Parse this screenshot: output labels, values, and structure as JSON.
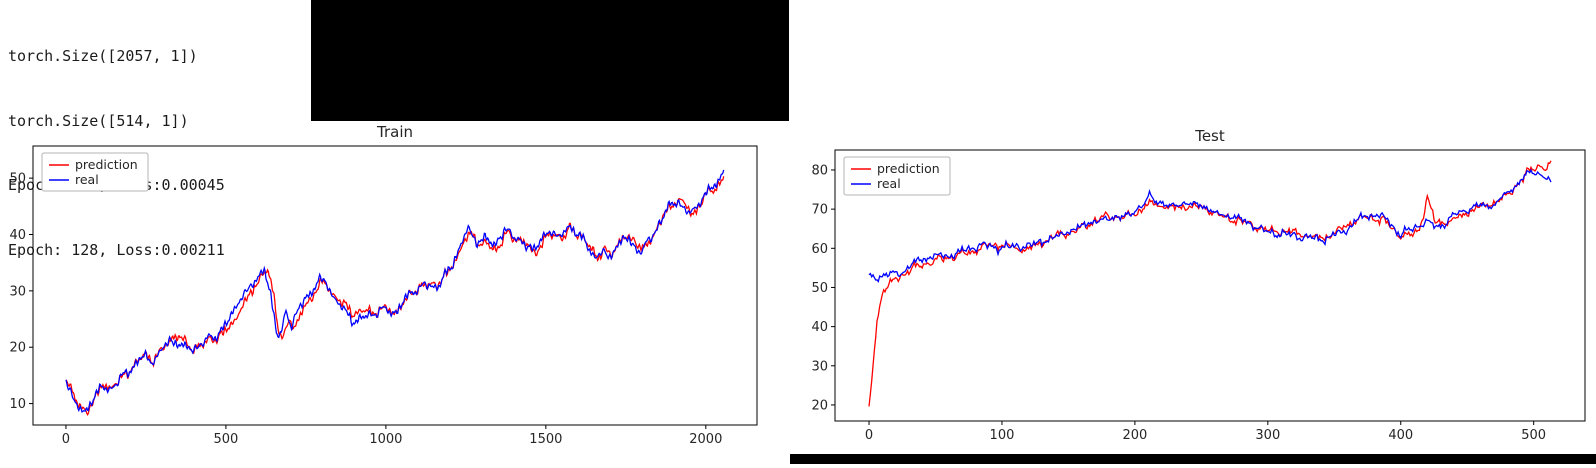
{
  "console": {
    "lines": [
      "torch.Size([2057, 1])",
      "torch.Size([514, 1])",
      "Epoch: 128, Loss:0.00045",
      "Epoch: 128, Loss:0.00211"
    ]
  },
  "chart_data": [
    {
      "type": "line",
      "title": "Train",
      "xlabel": "",
      "ylabel": "",
      "xticks": [
        0,
        500,
        1000,
        1500,
        2000
      ],
      "yticks": [
        10,
        20,
        30,
        40,
        50
      ],
      "xlim": [
        -103,
        2160
      ],
      "ylim": [
        6.2,
        55.7
      ],
      "n_points": 2057,
      "n_render": 820,
      "grid": false,
      "legend_position": "upper-left",
      "shared": {
        "seed": 41,
        "amp": 0.7
      },
      "keypoints": [
        [
          0,
          14.2
        ],
        [
          25,
          11.8
        ],
        [
          55,
          9.0
        ],
        [
          80,
          11.5
        ],
        [
          105,
          12.8
        ],
        [
          130,
          12.3
        ],
        [
          160,
          14.4
        ],
        [
          200,
          16.6
        ],
        [
          235,
          18.4
        ],
        [
          265,
          17.6
        ],
        [
          300,
          20.5
        ],
        [
          325,
          22.8
        ],
        [
          350,
          21.6
        ],
        [
          380,
          19.4
        ],
        [
          415,
          18.9
        ],
        [
          445,
          21.0
        ],
        [
          480,
          21.6
        ],
        [
          515,
          24.4
        ],
        [
          550,
          27.8
        ],
        [
          580,
          31.5
        ],
        [
          605,
          33.6
        ],
        [
          622,
          34.6
        ],
        [
          640,
          30.0
        ],
        [
          658,
          22.8
        ],
        [
          672,
          21.8
        ],
        [
          688,
          25.8
        ],
        [
          705,
          23.6
        ],
        [
          725,
          26.6
        ],
        [
          745,
          28.4
        ],
        [
          770,
          30.2
        ],
        [
          790,
          31.8
        ],
        [
          815,
          30.6
        ],
        [
          845,
          28.6
        ],
        [
          875,
          27.2
        ],
        [
          910,
          25.9
        ],
        [
          950,
          25.4
        ],
        [
          985,
          25.9
        ],
        [
          1015,
          25.6
        ],
        [
          1045,
          26.6
        ],
        [
          1080,
          28.6
        ],
        [
          1115,
          30.0
        ],
        [
          1150,
          31.2
        ],
        [
          1180,
          33.4
        ],
        [
          1210,
          35.6
        ],
        [
          1235,
          38.6
        ],
        [
          1258,
          40.8
        ],
        [
          1285,
          38.8
        ],
        [
          1310,
          39.8
        ],
        [
          1340,
          38.2
        ],
        [
          1370,
          40.4
        ],
        [
          1400,
          39.8
        ],
        [
          1430,
          39.2
        ],
        [
          1460,
          38.8
        ],
        [
          1490,
          40.2
        ],
        [
          1520,
          40.4
        ],
        [
          1545,
          38.8
        ],
        [
          1570,
          40.6
        ],
        [
          1600,
          39.6
        ],
        [
          1625,
          37.0
        ],
        [
          1655,
          34.2
        ],
        [
          1675,
          35.8
        ],
        [
          1695,
          34.4
        ],
        [
          1715,
          37.6
        ],
        [
          1745,
          39.8
        ],
        [
          1775,
          38.6
        ],
        [
          1800,
          36.8
        ],
        [
          1830,
          39.4
        ],
        [
          1860,
          42.8
        ],
        [
          1890,
          45.4
        ],
        [
          1910,
          46.6
        ],
        [
          1930,
          44.6
        ],
        [
          1950,
          43.6
        ],
        [
          1970,
          45.8
        ],
        [
          2000,
          48.4
        ],
        [
          2030,
          50.8
        ],
        [
          2056,
          52.8
        ]
      ],
      "series": [
        {
          "name": "prediction",
          "color": "#ff0000",
          "seed": 7,
          "own_amp": 0.4,
          "lag": 9
        },
        {
          "name": "real",
          "color": "#0000ff",
          "seed": 19,
          "own_amp": 0.35,
          "lag": 0
        }
      ]
    },
    {
      "type": "line",
      "title": "Test",
      "xlabel": "",
      "ylabel": "",
      "xticks": [
        0,
        100,
        200,
        300,
        400,
        500
      ],
      "yticks": [
        20,
        30,
        40,
        50,
        60,
        70,
        80
      ],
      "xlim": [
        -25.6,
        538.6
      ],
      "ylim": [
        15.9,
        85.1
      ],
      "n_points": 514,
      "n_render": 514,
      "grid": false,
      "legend_position": "upper-left",
      "shared": {
        "seed": 55,
        "amp": 0.8
      },
      "series": [
        {
          "name": "prediction",
          "color": "#ff0000",
          "seed": 3,
          "own_amp": 0.5,
          "lag": 0,
          "keypoints": [
            [
              0,
              19.0
            ],
            [
              3,
              30.0
            ],
            [
              6,
              42.0
            ],
            [
              10,
              49.0
            ],
            [
              16,
              50.8
            ],
            [
              25,
              52.4
            ],
            [
              40,
              54.4
            ],
            [
              55,
              56.6
            ],
            [
              70,
              58.4
            ],
            [
              85,
              59.6
            ],
            [
              100,
              59.8
            ],
            [
              115,
              61.0
            ],
            [
              130,
              62.8
            ],
            [
              145,
              64.6
            ],
            [
              160,
              66.0
            ],
            [
              175,
              66.8
            ],
            [
              190,
              67.8
            ],
            [
              202,
              69.8
            ],
            [
              210,
              71.4
            ],
            [
              220,
              70.0
            ],
            [
              230,
              68.6
            ],
            [
              242,
              69.2
            ],
            [
              255,
              69.8
            ],
            [
              268,
              68.6
            ],
            [
              280,
              67.6
            ],
            [
              292,
              66.4
            ],
            [
              305,
              64.8
            ],
            [
              315,
              63.6
            ],
            [
              325,
              63.4
            ],
            [
              338,
              64.4
            ],
            [
              350,
              64.8
            ],
            [
              362,
              65.6
            ],
            [
              375,
              67.0
            ],
            [
              388,
              66.0
            ],
            [
              398,
              62.6
            ],
            [
              406,
              62.8
            ],
            [
              414,
              65.0
            ],
            [
              420,
              73.4
            ],
            [
              426,
              67.0
            ],
            [
              436,
              66.8
            ],
            [
              448,
              68.2
            ],
            [
              458,
              69.6
            ],
            [
              468,
              71.4
            ],
            [
              478,
              74.6
            ],
            [
              488,
              78.0
            ],
            [
              496,
              80.2
            ],
            [
              504,
              80.8
            ],
            [
              509,
              80.0
            ],
            [
              513,
              81.4
            ]
          ]
        },
        {
          "name": "real",
          "color": "#0000ff",
          "seed": 29,
          "own_amp": 0.45,
          "lag": 0,
          "keypoints": [
            [
              0,
              52.2
            ],
            [
              12,
              53.2
            ],
            [
              25,
              53.8
            ],
            [
              40,
              55.8
            ],
            [
              55,
              57.4
            ],
            [
              70,
              59.2
            ],
            [
              85,
              60.0
            ],
            [
              95,
              59.4
            ],
            [
              105,
              60.6
            ],
            [
              120,
              61.8
            ],
            [
              135,
              63.6
            ],
            [
              150,
              65.2
            ],
            [
              165,
              66.6
            ],
            [
              180,
              67.2
            ],
            [
              195,
              68.4
            ],
            [
              205,
              71.0
            ],
            [
              211,
              73.6
            ],
            [
              218,
              71.0
            ],
            [
              228,
              68.8
            ],
            [
              240,
              69.4
            ],
            [
              252,
              70.2
            ],
            [
              262,
              69.0
            ],
            [
              275,
              68.4
            ],
            [
              288,
              67.0
            ],
            [
              300,
              65.2
            ],
            [
              312,
              63.6
            ],
            [
              322,
              63.0
            ],
            [
              335,
              64.2
            ],
            [
              348,
              65.0
            ],
            [
              358,
              64.6
            ],
            [
              368,
              66.2
            ],
            [
              380,
              67.8
            ],
            [
              390,
              66.2
            ],
            [
              400,
              62.0
            ],
            [
              408,
              63.4
            ],
            [
              418,
              66.4
            ],
            [
              428,
              65.6
            ],
            [
              438,
              67.4
            ],
            [
              450,
              68.8
            ],
            [
              460,
              70.4
            ],
            [
              470,
              72.2
            ],
            [
              480,
              75.8
            ],
            [
              490,
              78.8
            ],
            [
              498,
              80.8
            ],
            [
              505,
              80.2
            ],
            [
              510,
              78.8
            ],
            [
              513,
              77.2
            ]
          ]
        }
      ]
    }
  ]
}
